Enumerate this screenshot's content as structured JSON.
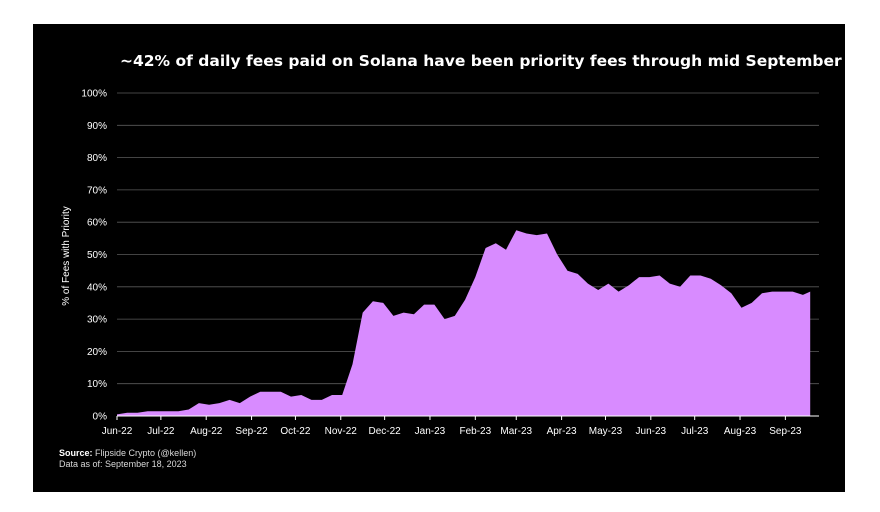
{
  "chart_data": {
    "type": "area",
    "title": "~42% of daily fees paid on Solana have been priority fees through mid September",
    "ylabel": "% of Fees with Priority",
    "xlabel": "",
    "ylim": [
      0,
      100
    ],
    "yticks": [
      "0%",
      "10%",
      "20%",
      "30%",
      "40%",
      "50%",
      "60%",
      "70%",
      "80%",
      "90%",
      "100%"
    ],
    "xlim": [
      "2022-06-01",
      "2023-09-24"
    ],
    "xticks": [
      {
        "date": "2022-06-01",
        "label": "Jun-22"
      },
      {
        "date": "2022-07-01",
        "label": "Jul-22"
      },
      {
        "date": "2022-08-01",
        "label": "Aug-22"
      },
      {
        "date": "2022-09-01",
        "label": "Sep-22"
      },
      {
        "date": "2022-10-01",
        "label": "Oct-22"
      },
      {
        "date": "2022-11-01",
        "label": "Nov-22"
      },
      {
        "date": "2022-12-01",
        "label": "Dec-22"
      },
      {
        "date": "2023-01-01",
        "label": "Jan-23"
      },
      {
        "date": "2023-02-01",
        "label": "Feb-23"
      },
      {
        "date": "2023-03-01",
        "label": "Mar-23"
      },
      {
        "date": "2023-04-01",
        "label": "Apr-23"
      },
      {
        "date": "2023-05-01",
        "label": "May-23"
      },
      {
        "date": "2023-06-01",
        "label": "Jun-23"
      },
      {
        "date": "2023-07-01",
        "label": "Jul-23"
      },
      {
        "date": "2023-08-01",
        "label": "Aug-23"
      },
      {
        "date": "2023-09-01",
        "label": "Sep-23"
      }
    ],
    "grid": true,
    "fill_color": "#d88bff",
    "x": [
      "2022-06-01",
      "2022-06-08",
      "2022-06-15",
      "2022-06-22",
      "2022-06-29",
      "2022-07-06",
      "2022-07-13",
      "2022-07-20",
      "2022-07-27",
      "2022-08-03",
      "2022-08-10",
      "2022-08-17",
      "2022-08-24",
      "2022-08-31",
      "2022-09-07",
      "2022-09-14",
      "2022-09-21",
      "2022-09-28",
      "2022-10-05",
      "2022-10-12",
      "2022-10-19",
      "2022-10-26",
      "2022-11-02",
      "2022-11-09",
      "2022-11-16",
      "2022-11-23",
      "2022-11-30",
      "2022-12-07",
      "2022-12-14",
      "2022-12-21",
      "2022-12-28",
      "2023-01-04",
      "2023-01-11",
      "2023-01-18",
      "2023-01-25",
      "2023-02-01",
      "2023-02-08",
      "2023-02-15",
      "2023-02-22",
      "2023-03-01",
      "2023-03-08",
      "2023-03-15",
      "2023-03-22",
      "2023-03-29",
      "2023-04-05",
      "2023-04-12",
      "2023-04-19",
      "2023-04-26",
      "2023-05-03",
      "2023-05-10",
      "2023-05-17",
      "2023-05-24",
      "2023-05-31",
      "2023-06-07",
      "2023-06-14",
      "2023-06-21",
      "2023-06-28",
      "2023-07-05",
      "2023-07-12",
      "2023-07-19",
      "2023-07-26",
      "2023-08-02",
      "2023-08-09",
      "2023-08-16",
      "2023-08-23",
      "2023-08-30",
      "2023-09-06",
      "2023-09-13",
      "2023-09-18"
    ],
    "values": [
      0.5,
      1,
      1,
      1.5,
      1.5,
      1.5,
      1.5,
      2,
      4,
      3.5,
      4,
      5,
      4,
      6,
      7.5,
      7.5,
      7.5,
      6,
      6.5,
      5,
      5,
      6.5,
      6.5,
      16,
      32,
      35.5,
      35,
      31,
      32,
      31.5,
      34.5,
      34.5,
      30,
      31,
      36,
      43,
      52,
      53.5,
      51.5,
      57.5,
      56.5,
      56,
      56.5,
      50,
      45,
      44,
      41,
      39,
      41,
      38.5,
      40.5,
      43,
      43,
      43.5,
      41,
      40,
      43.5,
      43.5,
      42.5,
      40.5,
      38,
      33.5,
      35,
      38,
      38.5,
      38.5,
      38.5,
      37.5,
      38.5
    ]
  },
  "source": {
    "label": "Source:",
    "text": "Flipside Crypto (@kellen)",
    "asof_label": "Data as of:",
    "asof_text": "September 18, 2023"
  }
}
